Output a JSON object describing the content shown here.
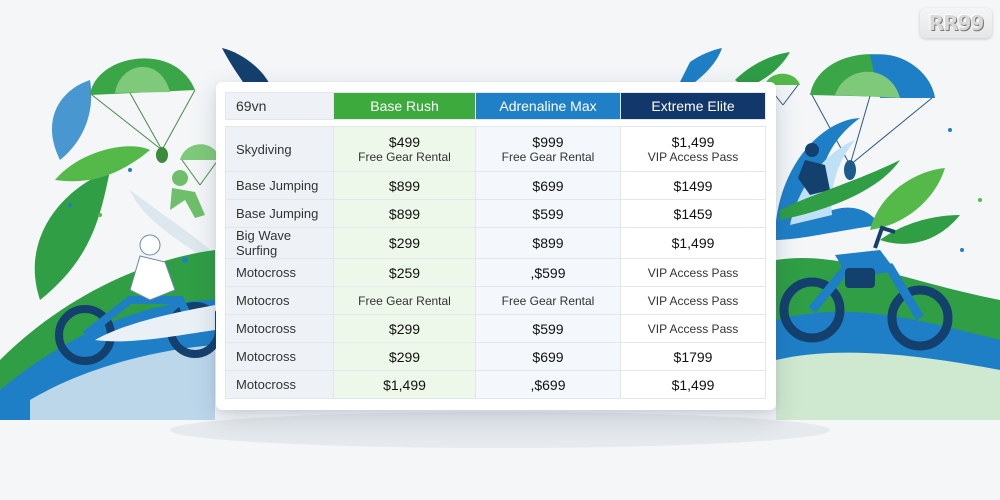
{
  "brand": {
    "logo_text": "RR99"
  },
  "table": {
    "corner": "69vn",
    "plans": [
      "Base Rush",
      "Adrenaline Max",
      "Extreme Elite"
    ],
    "plan_colors": [
      "#3daa3d",
      "#1f7fc7",
      "#12376b"
    ],
    "rows": [
      {
        "activity": "Skydiving",
        "cells": [
          {
            "price": "$499",
            "note": "Free Gear Rental"
          },
          {
            "price": "$999",
            "note": "Free Gear Rental"
          },
          {
            "price": "$1,499",
            "note": "VIP Access Pass"
          }
        ]
      },
      {
        "activity": "Base Jumping",
        "cells": [
          {
            "price": "$899"
          },
          {
            "price": "$699"
          },
          {
            "price": "$1499"
          }
        ]
      },
      {
        "activity": "Base Jumping",
        "cells": [
          {
            "price": "$899"
          },
          {
            "price": "$599"
          },
          {
            "price": "$1459"
          }
        ]
      },
      {
        "activity": "Big Wave Surfing",
        "cells": [
          {
            "price": "$299"
          },
          {
            "price": "$899"
          },
          {
            "price": "$1,499"
          }
        ]
      },
      {
        "activity": "Motocross",
        "cells": [
          {
            "price": "$259"
          },
          {
            "price": ",$599"
          },
          {
            "note": "VIP Access Pass"
          }
        ]
      },
      {
        "activity": "Motocros",
        "cells": [
          {
            "note": "Free Gear Rental"
          },
          {
            "note": "Free Gear Rental"
          },
          {
            "note": "VIP Access Pass"
          }
        ]
      },
      {
        "activity": "Motocross",
        "cells": [
          {
            "price": "$299"
          },
          {
            "price": "$599"
          },
          {
            "note": "VIP Access Pass"
          }
        ]
      },
      {
        "activity": "Motocross",
        "cells": [
          {
            "price": "$299"
          },
          {
            "price": "$699"
          },
          {
            "price": "$1799"
          }
        ]
      },
      {
        "activity": "Motocross",
        "cells": [
          {
            "price": "$1,499"
          },
          {
            "price": ",$699"
          },
          {
            "price": "$1,499"
          }
        ]
      }
    ]
  },
  "illustration": {
    "left_icons": [
      "parachute-icon",
      "surfer-icon",
      "motocross-rider-icon",
      "leaf-icon"
    ],
    "right_icons": [
      "parachute-icon",
      "wave-surfer-icon",
      "dirt-bike-icon",
      "leaf-icon"
    ]
  }
}
